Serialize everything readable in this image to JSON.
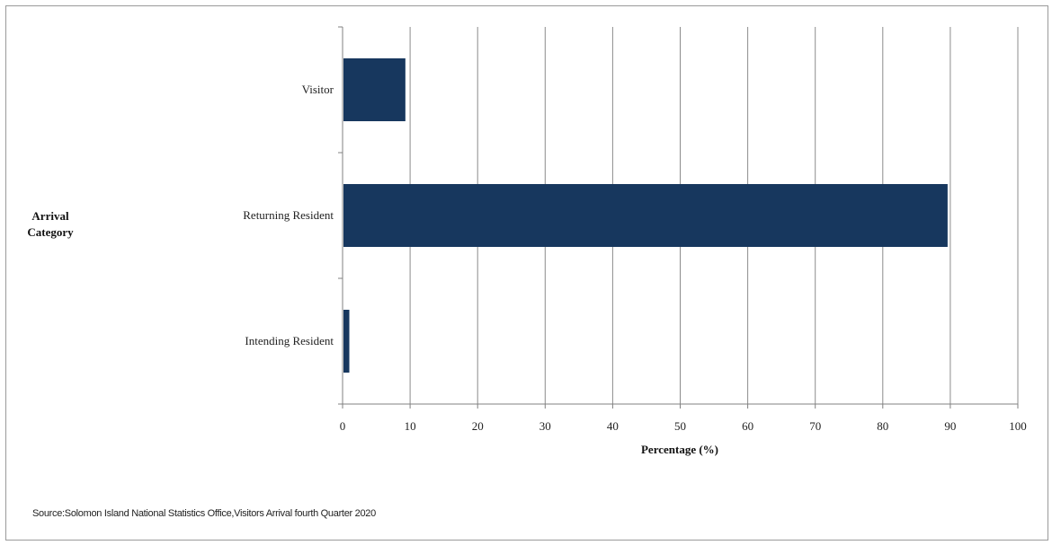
{
  "chart_data": {
    "type": "bar",
    "orientation": "horizontal",
    "categories": [
      "Visitor",
      "Returning Resident",
      "Intending Resident"
    ],
    "values": [
      9.3,
      89.6,
      1.0
    ],
    "xlabel": "Percentage (%)",
    "ylabel": "Arrival Category",
    "xlim": [
      0,
      100
    ],
    "xticks": [
      "0",
      "10",
      "20",
      "30",
      "40",
      "50",
      "60",
      "70",
      "80",
      "90",
      "100"
    ],
    "grid": "vertical",
    "bar_color": "#17375e",
    "grid_color": "#8c8c8c"
  },
  "source": "Source:Solomon Island National Statistics Office,Visitors Arrival fourth Quarter 2020"
}
